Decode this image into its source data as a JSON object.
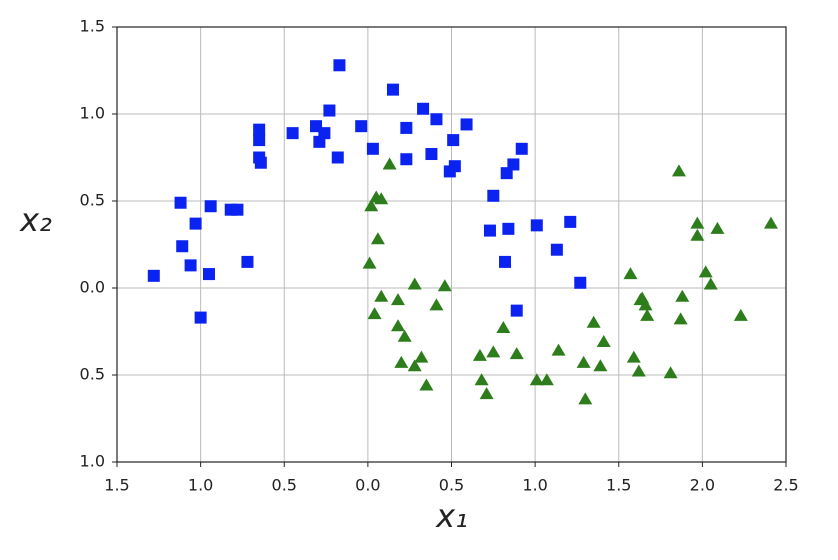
{
  "chart_data": {
    "type": "scatter",
    "xlabel": "x₁",
    "ylabel": "x₂",
    "xlim": [
      -1.5,
      2.5
    ],
    "ylim": [
      -1.0,
      1.5
    ],
    "xticks": [
      {
        "value": -1.5,
        "label": "1.5"
      },
      {
        "value": -1.0,
        "label": "1.0"
      },
      {
        "value": -0.5,
        "label": "0.5"
      },
      {
        "value": 0.0,
        "label": "0.0"
      },
      {
        "value": 0.5,
        "label": "0.5"
      },
      {
        "value": 1.0,
        "label": "1.0"
      },
      {
        "value": 1.5,
        "label": "1.5"
      },
      {
        "value": 2.0,
        "label": "2.0"
      },
      {
        "value": 2.5,
        "label": "2.5"
      }
    ],
    "yticks": [
      {
        "value": -1.0,
        "label": "1.0"
      },
      {
        "value": -0.5,
        "label": "0.5"
      },
      {
        "value": 0.0,
        "label": "0.0"
      },
      {
        "value": 0.5,
        "label": "0.5"
      },
      {
        "value": 1.0,
        "label": "1.0"
      },
      {
        "value": 1.5,
        "label": "1.5"
      }
    ],
    "grid": true,
    "series": [
      {
        "color": "#0a23f0",
        "marker": "square",
        "x": [
          -1.28,
          -1.12,
          -1.11,
          -1.03,
          -1.06,
          -1.0,
          -0.95,
          -0.94,
          -0.82,
          -0.78,
          -0.72,
          -0.65,
          -0.65,
          -0.65,
          -0.64,
          -0.45,
          -0.31,
          -0.29,
          -0.26,
          -0.23,
          -0.17,
          -0.18,
          -0.04,
          0.03,
          0.15,
          0.23,
          0.23,
          0.33,
          0.38,
          0.41,
          0.49,
          0.51,
          0.52,
          0.59,
          0.75,
          0.73,
          0.82,
          0.84,
          0.83,
          0.87,
          0.89,
          0.92,
          1.01,
          1.13,
          1.21,
          1.27
        ],
        "y": [
          0.07,
          0.49,
          0.24,
          0.37,
          0.13,
          -0.17,
          0.08,
          0.47,
          0.45,
          0.45,
          0.15,
          0.91,
          0.85,
          0.75,
          0.72,
          0.89,
          0.93,
          0.84,
          0.89,
          1.02,
          1.28,
          0.75,
          0.93,
          0.8,
          1.14,
          0.74,
          0.92,
          1.03,
          0.77,
          0.97,
          0.67,
          0.85,
          0.7,
          0.94,
          0.53,
          0.33,
          0.15,
          0.34,
          0.66,
          0.71,
          -0.13,
          0.8,
          0.36,
          0.22,
          0.38,
          0.03
        ]
      },
      {
        "color": "#2e7d1c",
        "marker": "triangle",
        "x": [
          0.01,
          0.06,
          0.02,
          0.08,
          0.04,
          0.05,
          0.08,
          0.13,
          0.18,
          0.18,
          0.2,
          0.22,
          0.28,
          0.28,
          0.32,
          0.35,
          0.41,
          0.46,
          0.67,
          0.68,
          0.71,
          0.75,
          0.81,
          0.89,
          1.01,
          1.07,
          1.14,
          1.29,
          1.3,
          1.35,
          1.39,
          1.41,
          1.57,
          1.59,
          1.62,
          1.63,
          1.64,
          1.66,
          1.67,
          1.81,
          1.86,
          1.87,
          1.88,
          1.97,
          1.97,
          2.02,
          2.05,
          2.09,
          2.23,
          2.41
        ],
        "y": [
          0.14,
          0.28,
          0.47,
          -0.05,
          -0.15,
          0.52,
          0.51,
          0.71,
          -0.07,
          -0.22,
          -0.43,
          -0.28,
          0.02,
          -0.45,
          -0.4,
          -0.56,
          -0.1,
          0.01,
          -0.39,
          -0.53,
          -0.61,
          -0.37,
          -0.23,
          -0.38,
          -0.53,
          -0.53,
          -0.36,
          -0.43,
          -0.64,
          -0.2,
          -0.45,
          -0.31,
          0.08,
          -0.4,
          -0.48,
          -0.07,
          -0.06,
          -0.1,
          -0.16,
          -0.49,
          0.67,
          -0.18,
          -0.05,
          0.37,
          0.3,
          0.09,
          0.02,
          0.34,
          -0.16,
          0.37
        ]
      }
    ]
  }
}
